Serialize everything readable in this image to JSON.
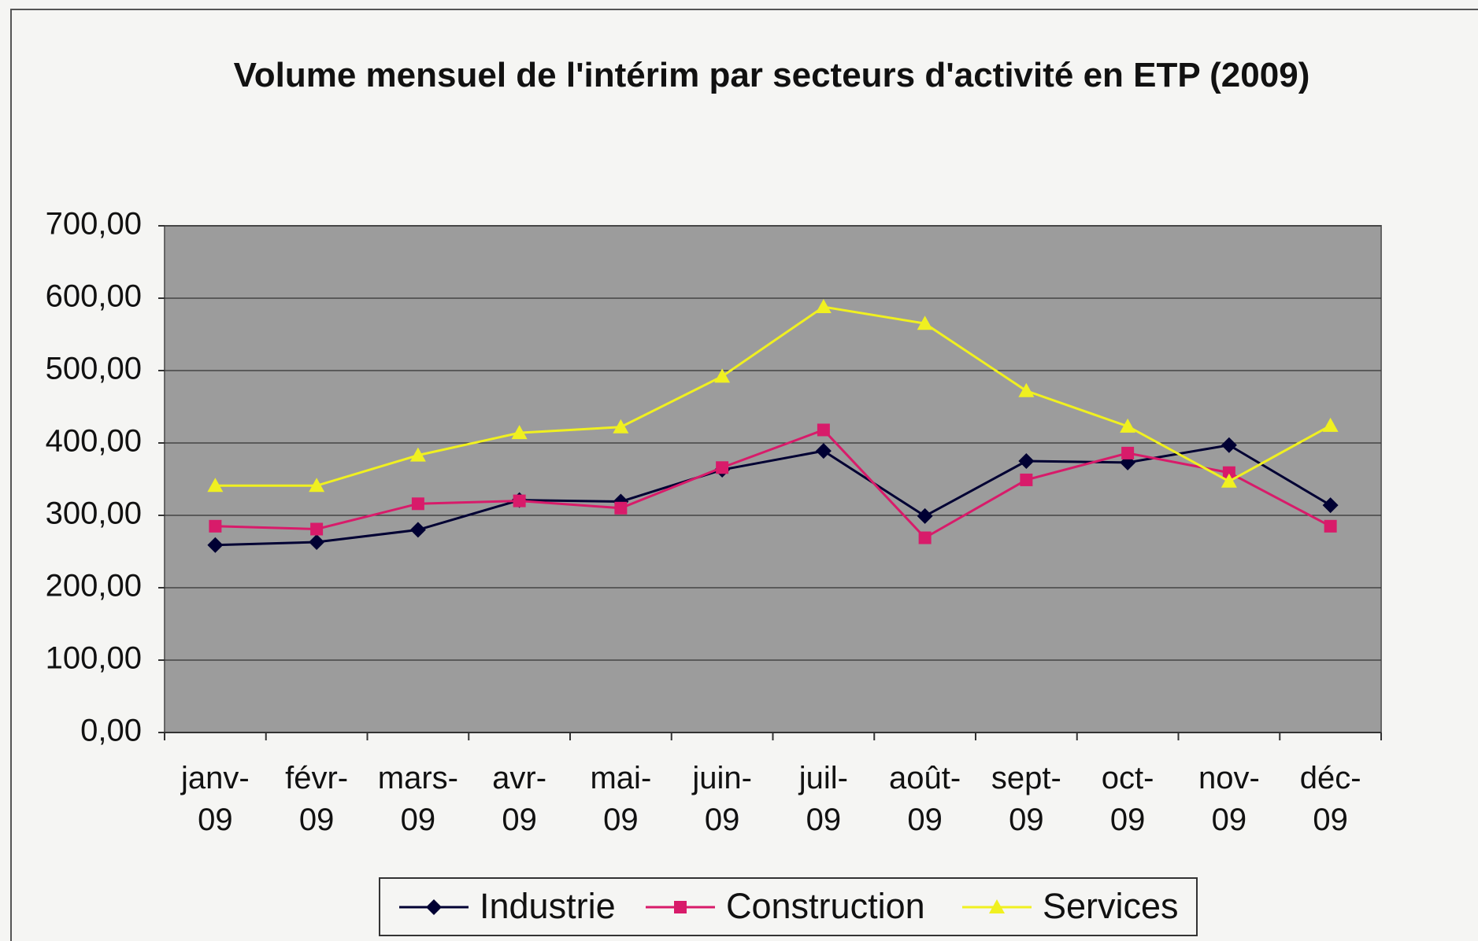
{
  "chart_data": {
    "type": "line",
    "title": "Volume mensuel de l'intérim par secteurs d'activité en ETP (2009)",
    "categories": [
      "janv-09",
      "févr-09",
      "mars-09",
      "avr-09",
      "mai-09",
      "juin-09",
      "juil-09",
      "août-09",
      "sept-09",
      "oct-09",
      "nov-09",
      "déc-09"
    ],
    "series": [
      {
        "name": "Industrie",
        "color": "#000033",
        "marker": "diamond",
        "values": [
          259,
          263,
          280,
          321,
          319,
          363,
          389,
          299,
          375,
          373,
          397,
          314
        ]
      },
      {
        "name": "Construction",
        "color": "#d81b6a",
        "marker": "square",
        "values": [
          285,
          281,
          316,
          320,
          310,
          366,
          418,
          269,
          349,
          386,
          359,
          285
        ]
      },
      {
        "name": "Services",
        "color": "#f0f020",
        "marker": "triangle",
        "values": [
          341,
          341,
          383,
          414,
          422,
          492,
          588,
          565,
          472,
          423,
          347,
          424
        ]
      }
    ],
    "ylim": [
      0,
      700
    ],
    "yticks": [
      {
        "value": 0,
        "label": "0,00"
      },
      {
        "value": 100,
        "label": "100,00"
      },
      {
        "value": 200,
        "label": "200,00"
      },
      {
        "value": 300,
        "label": "300,00"
      },
      {
        "value": 400,
        "label": "400,00"
      },
      {
        "value": 500,
        "label": "500,00"
      },
      {
        "value": 600,
        "label": "600,00"
      },
      {
        "value": 700,
        "label": "700,00"
      }
    ],
    "grid": true,
    "legend": "bottom"
  }
}
